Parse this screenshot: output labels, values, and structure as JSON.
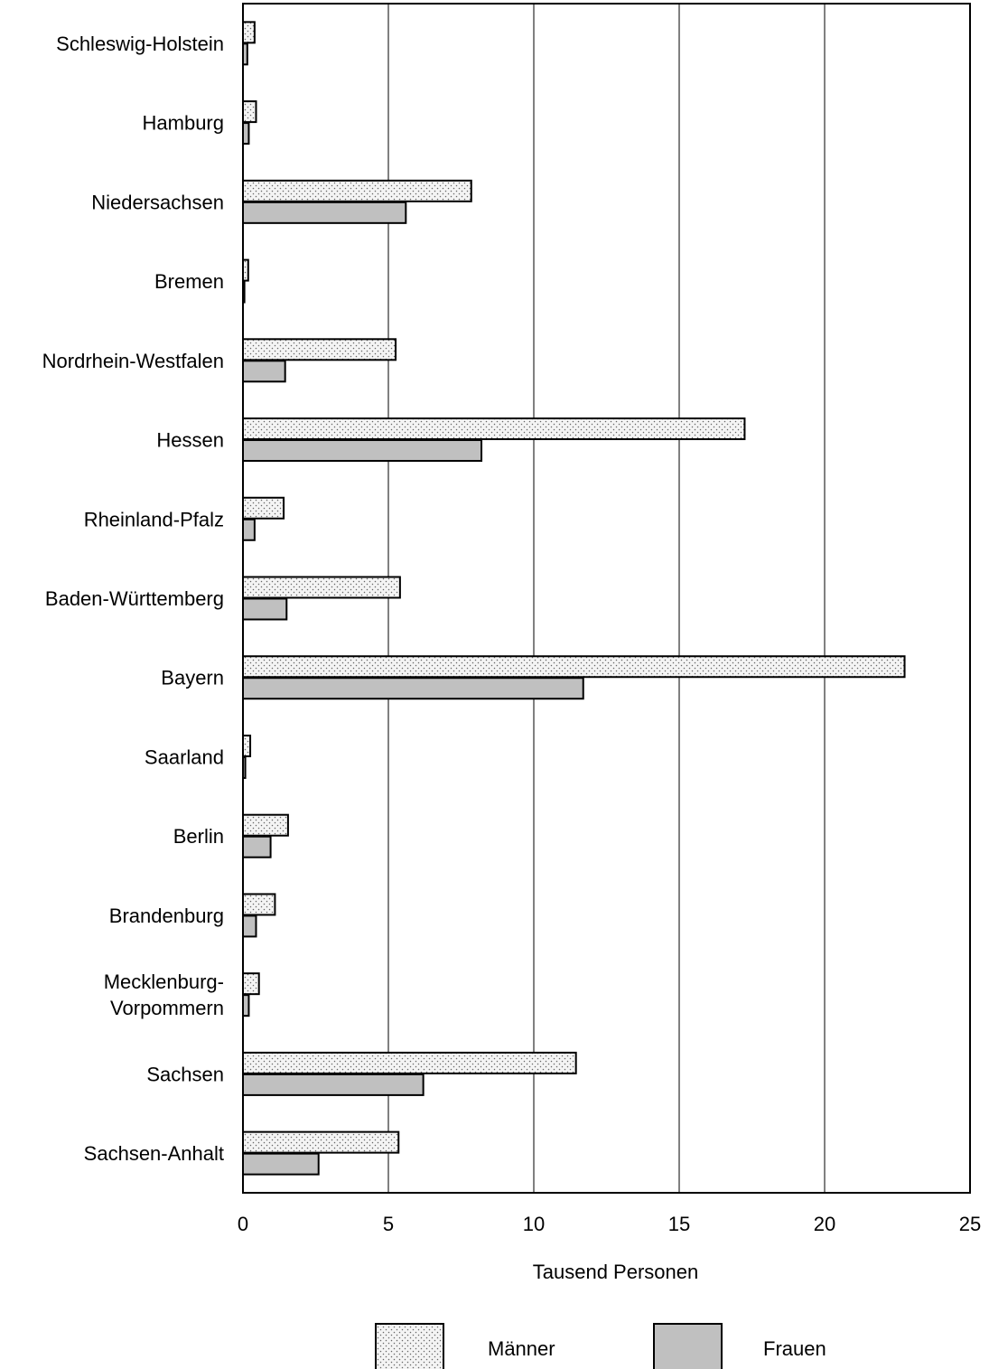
{
  "chart_data": {
    "type": "bar",
    "orientation": "horizontal",
    "categories": [
      "Schleswig-Holstein",
      "Hamburg",
      "Niedersachsen",
      "Bremen",
      "Nordrhein-Westfalen",
      "Hessen",
      "Rheinland-Pfalz",
      "Baden-Württemberg",
      "Bayern",
      "Saarland",
      "Berlin",
      "Brandenburg",
      "Mecklenburg-\nVorpommern",
      "Sachsen",
      "Sachsen-Anhalt"
    ],
    "series": [
      {
        "name": "Männer",
        "pattern": "dotted",
        "fill": "#f2f2f2",
        "values": [
          0.4,
          0.45,
          7.85,
          0.18,
          5.25,
          17.25,
          1.4,
          5.4,
          22.75,
          0.25,
          1.55,
          1.1,
          0.55,
          11.45,
          5.35
        ]
      },
      {
        "name": "Frauen",
        "pattern": "solid",
        "fill": "#c0c0c0",
        "values": [
          0.15,
          0.2,
          5.6,
          0.05,
          1.45,
          8.2,
          0.4,
          1.5,
          11.7,
          0.08,
          0.95,
          0.45,
          0.2,
          6.2,
          2.6
        ]
      }
    ],
    "xlabel": "Tausend Personen",
    "ylabel": "",
    "title": "",
    "xlim": [
      0,
      25
    ],
    "xticks": [
      0,
      5,
      10,
      15,
      20,
      25
    ],
    "grid": true,
    "legend": "bottom-center"
  }
}
